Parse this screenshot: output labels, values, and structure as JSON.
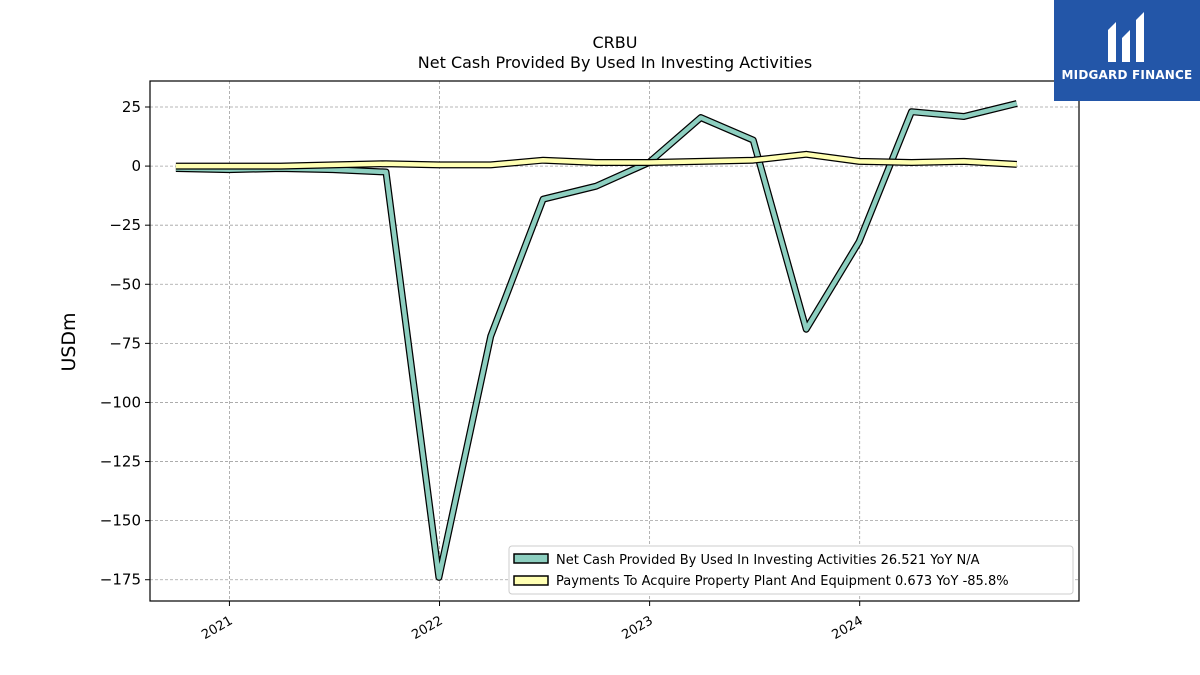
{
  "brand": {
    "name": "MIDGARD FINANCE",
    "bg_color": "#2356a8"
  },
  "chart_data": {
    "type": "line",
    "title": "CRBU",
    "subtitle": "Net Cash Provided By Used In Investing Activities",
    "xlabel": "",
    "ylabel": "USDm",
    "ylim": [
      -184,
      36
    ],
    "xlim": [
      "2020-08-16",
      "2025-01-16"
    ],
    "x_ticks": [
      {
        "label": "2021",
        "date": "2021-01-01"
      },
      {
        "label": "2022",
        "date": "2022-01-01"
      },
      {
        "label": "2023",
        "date": "2023-01-01"
      },
      {
        "label": "2024",
        "date": "2024-01-01"
      }
    ],
    "y_ticks": [
      {
        "label": "25",
        "value": 25
      },
      {
        "label": "0",
        "value": 0
      },
      {
        "label": "−25",
        "value": -25
      },
      {
        "label": "−50",
        "value": -50
      },
      {
        "label": "−75",
        "value": -75
      },
      {
        "label": "−100",
        "value": -100
      },
      {
        "label": "−125",
        "value": -125
      },
      {
        "label": "−150",
        "value": -150
      },
      {
        "label": "−175",
        "value": -175
      }
    ],
    "grid": true,
    "legend_position": "lower-right",
    "x": [
      "2020-09-30",
      "2020-12-31",
      "2021-03-31",
      "2021-06-30",
      "2021-09-30",
      "2021-12-31",
      "2022-03-31",
      "2022-06-30",
      "2022-09-30",
      "2022-12-31",
      "2023-03-31",
      "2023-06-30",
      "2023-09-30",
      "2023-12-31",
      "2024-03-31",
      "2024-06-30",
      "2024-09-30"
    ],
    "series": [
      {
        "name": "Net Cash Provided By Used In Investing Activities",
        "legend_label": "Net Cash Provided By Used In Investing Activities  26.521 YoY N/A",
        "color": "#8dcfc0",
        "values": [
          -1,
          -1.5,
          -1,
          -1.5,
          -2.5,
          -174,
          -72,
          -14,
          -8.5,
          1.5,
          20.5,
          11,
          -69,
          -32,
          23,
          21,
          26.5
        ]
      },
      {
        "name": "Payments To Acquire Property Plant And Equipment",
        "legend_label": "Payments To Acquire Property Plant And Equipment  0.673 YoY -85.8%",
        "color": "#ffffb3",
        "values": [
          0,
          0,
          0,
          0.5,
          1,
          0.5,
          0.5,
          2.5,
          1.5,
          1.5,
          2,
          2.5,
          5,
          2,
          1.5,
          2,
          0.7
        ]
      }
    ]
  }
}
